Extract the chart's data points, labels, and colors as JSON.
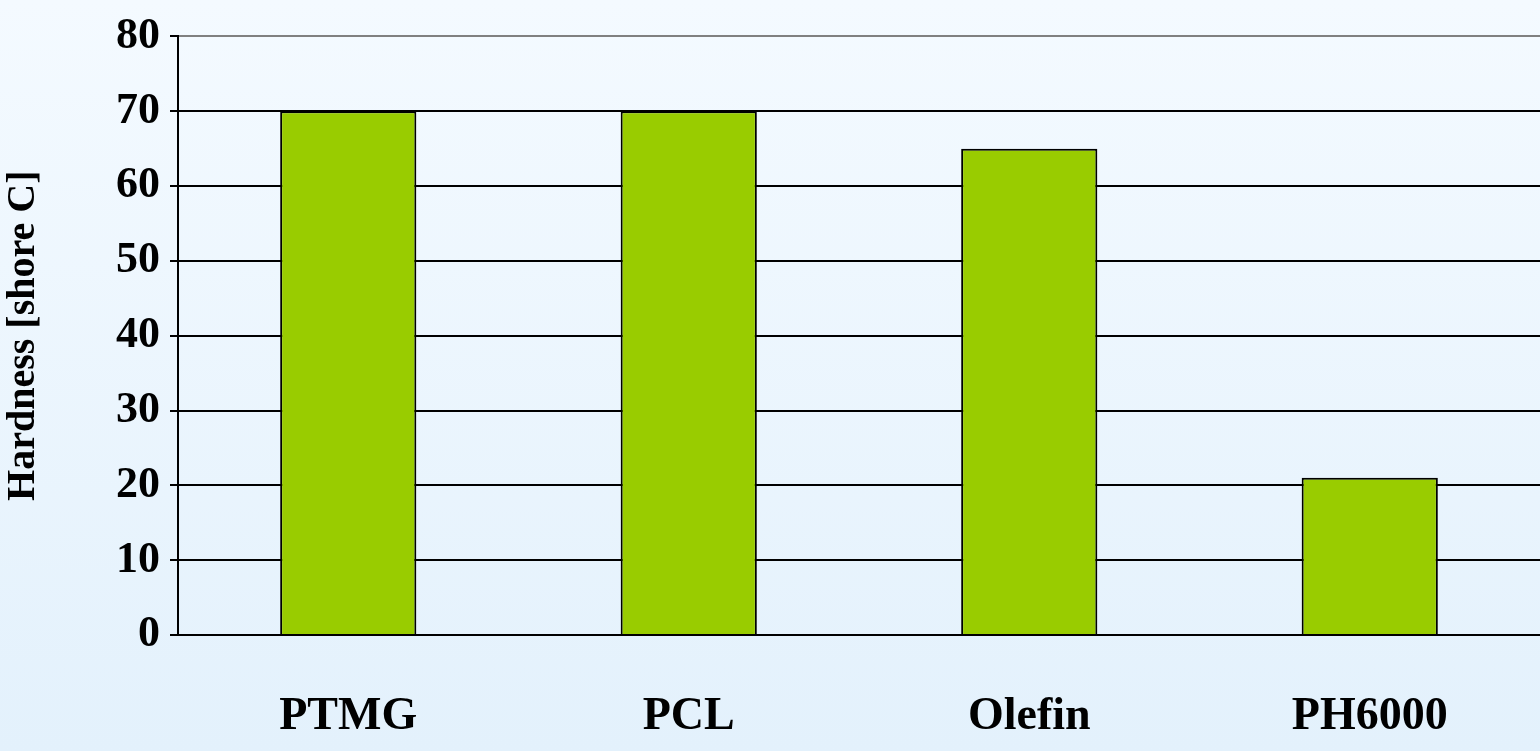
{
  "chart_data": {
    "type": "bar",
    "ylabel": "Hardness [shore C]",
    "categories": [
      "PTMG",
      "PCL",
      "Olefin",
      "PH6000"
    ],
    "values": [
      70,
      70,
      65,
      21
    ],
    "color": "#99cc00",
    "ylim": [
      0,
      80
    ],
    "yticks": [
      0,
      10,
      20,
      30,
      40,
      50,
      60,
      70,
      80
    ],
    "grid": "y"
  }
}
